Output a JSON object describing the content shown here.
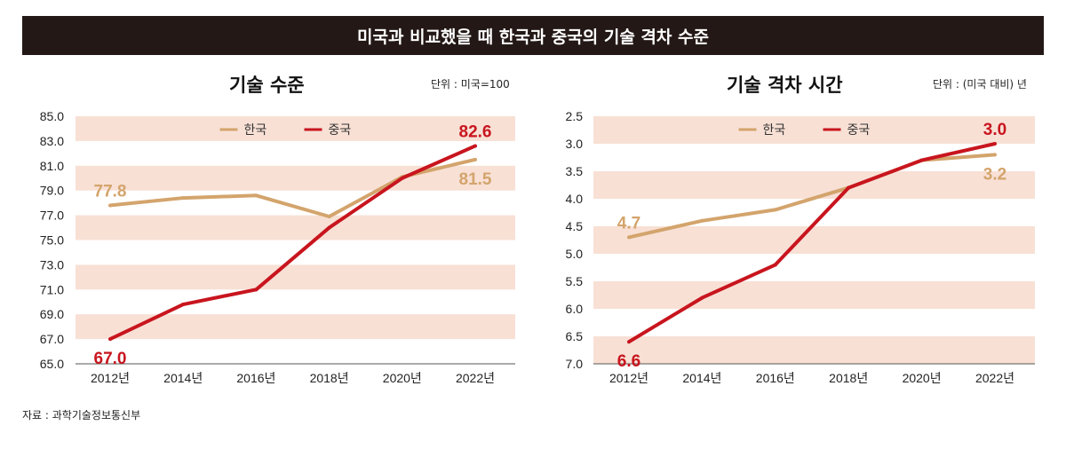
{
  "title": "미국과 비교했을 때 한국과 중국의 기술 격차 수준",
  "source": "자료 : 과학기술정보통신부",
  "colors": {
    "korea": "#D3A46C",
    "china": "#C8151E",
    "band": "#F8E0D5",
    "banner": "#231815"
  },
  "chart_data": [
    {
      "type": "line",
      "title": "기술 수준",
      "unit": "단위 : 미국=100",
      "categories": [
        "2012년",
        "2014년",
        "2016년",
        "2018년",
        "2020년",
        "2022년"
      ],
      "ylim": [
        65,
        85
      ],
      "yticks": [
        "65.0",
        "67.0",
        "69.0",
        "71.0",
        "73.0",
        "75.0",
        "77.0",
        "79.0",
        "81.0",
        "83.0",
        "85.0"
      ],
      "y_inverted": false,
      "legend": "top-center",
      "series": [
        {
          "name": "한국",
          "values": [
            77.8,
            78.4,
            78.6,
            76.9,
            80.1,
            81.5
          ],
          "labels": {
            "0": "77.8",
            "5": "81.5"
          }
        },
        {
          "name": "중국",
          "values": [
            67.0,
            69.8,
            71.0,
            76.0,
            80.0,
            82.6
          ],
          "labels": {
            "0": "67.0",
            "5": "82.6"
          }
        }
      ]
    },
    {
      "type": "line",
      "title": "기술 격차 시간",
      "unit": "단위 : (미국 대비) 년",
      "categories": [
        "2012년",
        "2014년",
        "2016년",
        "2018년",
        "2020년",
        "2022년"
      ],
      "ylim": [
        2.5,
        7.0
      ],
      "yticks": [
        "2.5",
        "3.0",
        "3.5",
        "4.0",
        "4.5",
        "5.0",
        "5.5",
        "6.0",
        "6.5",
        "7.0"
      ],
      "y_inverted": true,
      "legend": "top-center",
      "series": [
        {
          "name": "한국",
          "values": [
            4.7,
            4.4,
            4.2,
            3.8,
            3.3,
            3.2
          ],
          "labels": {
            "0": "4.7",
            "5": "3.2"
          }
        },
        {
          "name": "중국",
          "values": [
            6.6,
            5.8,
            5.2,
            3.8,
            3.3,
            3.0
          ],
          "labels": {
            "0": "6.6",
            "5": "3.0"
          }
        }
      ]
    }
  ]
}
